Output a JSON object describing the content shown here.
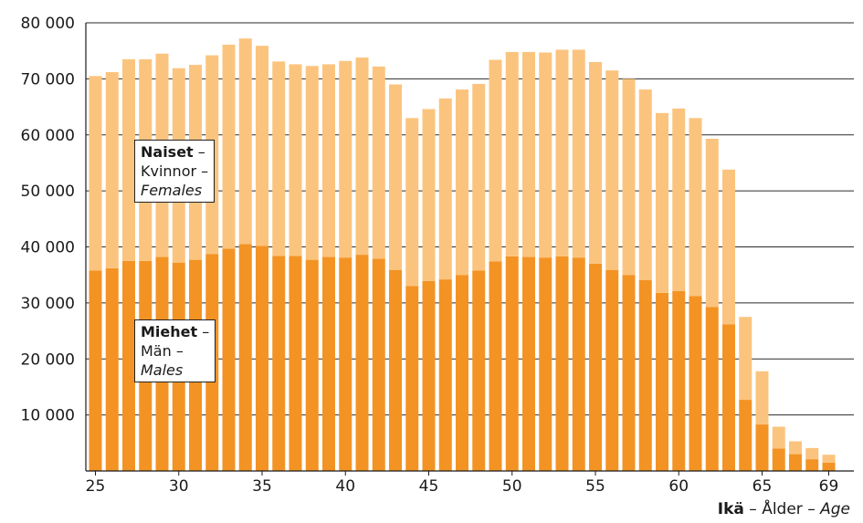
{
  "chart_data": {
    "type": "bar",
    "stacked": true,
    "categories": [
      25,
      26,
      27,
      28,
      29,
      30,
      31,
      32,
      33,
      34,
      35,
      36,
      37,
      38,
      39,
      40,
      41,
      42,
      43,
      44,
      45,
      46,
      47,
      48,
      49,
      50,
      51,
      52,
      53,
      54,
      55,
      56,
      57,
      58,
      59,
      60,
      61,
      62,
      63,
      64,
      65,
      66,
      67,
      68,
      69
    ],
    "x_tick_labels": [
      "25",
      "30",
      "35",
      "40",
      "45",
      "50",
      "55",
      "60",
      "65",
      "69"
    ],
    "x_tick_values": [
      25,
      30,
      35,
      40,
      45,
      50,
      55,
      60,
      65,
      69
    ],
    "y_tick_labels": [
      "10 000",
      "20 000",
      "30 000",
      "40 000",
      "50 000",
      "60 000",
      "70 000",
      "80 000"
    ],
    "y_tick_values": [
      10000,
      20000,
      30000,
      40000,
      50000,
      60000,
      70000,
      80000
    ],
    "ylim": [
      0,
      80000
    ],
    "grid": true,
    "series": [
      {
        "name": "Miehet – Män – Males",
        "color": "#f39324",
        "values": [
          35800,
          36200,
          37500,
          37500,
          38200,
          37200,
          37700,
          38700,
          39700,
          40500,
          40200,
          38400,
          38400,
          37700,
          38200,
          38100,
          38600,
          37900,
          35900,
          33000,
          33900,
          34200,
          35000,
          35800,
          37400,
          38300,
          38200,
          38100,
          38300,
          38100,
          37000,
          35900,
          35000,
          34100,
          31800,
          32100,
          31200,
          29300,
          26200,
          12700,
          8300,
          4000,
          3000,
          2100,
          1500
        ]
      },
      {
        "name": "Naiset – Kvinnor – Females",
        "color": "#fbc47e",
        "values": [
          34700,
          35000,
          36000,
          36000,
          36300,
          34700,
          34800,
          35500,
          36400,
          36700,
          35700,
          34700,
          34200,
          34600,
          34400,
          35100,
          35200,
          34300,
          33100,
          30000,
          30700,
          32300,
          33100,
          33300,
          36000,
          36500,
          36600,
          36600,
          36900,
          37100,
          36000,
          35600,
          35000,
          34000,
          32100,
          32600,
          31800,
          30000,
          27600,
          14800,
          9500,
          3900,
          2300,
          2000,
          1400
        ]
      }
    ],
    "legend": [
      {
        "bold": "Naiset",
        "sep": " –",
        "line2": "Kvinnor –",
        "line3": "Females"
      },
      {
        "bold": "Miehet",
        "sep": " –",
        "line2": "Män –",
        "line3": "Males"
      }
    ],
    "xlabel": {
      "bold": "Ikä",
      "middle": " – Ålder – ",
      "italic": "Age"
    }
  }
}
